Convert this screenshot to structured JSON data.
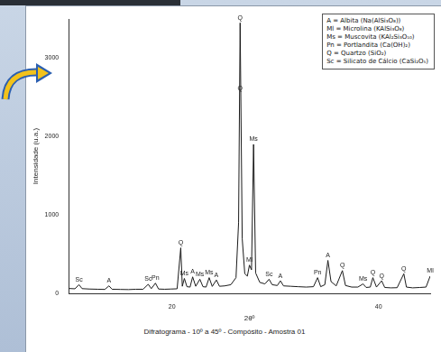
{
  "chart_data": {
    "type": "line",
    "caption": "Difratograma - 10º a 45º - Compósito - Amostra 01",
    "x_label": "2θº",
    "y_label": "Intensidade (u.a.)",
    "color": "#1a1a1a",
    "grid": false,
    "xlim": [
      10,
      45
    ],
    "xticks": [
      20,
      40
    ],
    "ylim": [
      0,
      3500
    ],
    "yticks": [
      0,
      1000,
      2000,
      3000
    ],
    "x": [
      10.0,
      10.6,
      11.0,
      11.3,
      12.0,
      12.8,
      13.5,
      13.9,
      14.2,
      15.0,
      15.8,
      16.5,
      17.2,
      17.7,
      18.0,
      18.4,
      18.7,
      19.3,
      19.9,
      20.5,
      20.85,
      21.0,
      21.2,
      21.45,
      21.75,
      22.0,
      22.3,
      22.7,
      23.0,
      23.3,
      23.6,
      23.9,
      24.3,
      24.6,
      25.1,
      25.7,
      26.2,
      26.45,
      26.6,
      26.8,
      27.05,
      27.3,
      27.5,
      27.7,
      27.9,
      28.1,
      28.5,
      29.0,
      29.4,
      29.7,
      30.2,
      30.5,
      30.8,
      31.5,
      32.2,
      33.0,
      33.7,
      34.1,
      34.4,
      34.8,
      35.1,
      35.4,
      35.9,
      36.5,
      36.8,
      37.4,
      38.0,
      38.5,
      38.8,
      39.2,
      39.45,
      39.8,
      40.3,
      40.6,
      41.2,
      41.8,
      42.45,
      42.7,
      43.3,
      44.0,
      44.6,
      45.0
    ],
    "values": [
      62,
      58,
      110,
      60,
      55,
      52,
      50,
      95,
      52,
      50,
      48,
      52,
      52,
      115,
      60,
      130,
      55,
      52,
      55,
      58,
      580,
      90,
      190,
      85,
      80,
      210,
      90,
      180,
      85,
      80,
      200,
      88,
      170,
      90,
      95,
      110,
      200,
      900,
      3450,
      700,
      250,
      220,
      360,
      300,
      1900,
      260,
      140,
      120,
      180,
      110,
      100,
      160,
      95,
      90,
      85,
      80,
      85,
      200,
      85,
      110,
      420,
      150,
      95,
      290,
      100,
      80,
      80,
      120,
      75,
      80,
      200,
      80,
      160,
      75,
      70,
      72,
      250,
      80,
      70,
      75,
      80,
      220
    ],
    "annotations": [
      {
        "text": "Sc",
        "x": 11.0,
        "y": 110
      },
      {
        "text": "A",
        "x": 13.9,
        "y": 95
      },
      {
        "text": "Sc",
        "x": 17.7,
        "y": 115
      },
      {
        "text": "Pn",
        "x": 18.4,
        "y": 130
      },
      {
        "text": "Q",
        "x": 20.85,
        "y": 580
      },
      {
        "text": "Ms",
        "x": 21.2,
        "y": 190
      },
      {
        "text": "A",
        "x": 22.0,
        "y": 210
      },
      {
        "text": "Ms",
        "x": 22.7,
        "y": 180
      },
      {
        "text": "Ms",
        "x": 23.6,
        "y": 200
      },
      {
        "text": "A",
        "x": 24.3,
        "y": 170
      },
      {
        "text": "Q",
        "x": 26.6,
        "y": 3450
      },
      {
        "text": "Q",
        "x": 26.6,
        "y": 2550
      },
      {
        "text": "Ml",
        "x": 27.5,
        "y": 360
      },
      {
        "text": "Ms",
        "x": 27.9,
        "y": 1900
      },
      {
        "text": "Sc",
        "x": 29.4,
        "y": 180
      },
      {
        "text": "A",
        "x": 30.5,
        "y": 160
      },
      {
        "text": "Pn",
        "x": 34.1,
        "y": 200
      },
      {
        "text": "A",
        "x": 35.1,
        "y": 420
      },
      {
        "text": "Q",
        "x": 36.5,
        "y": 290
      },
      {
        "text": "Ms",
        "x": 38.5,
        "y": 120
      },
      {
        "text": "Q",
        "x": 39.45,
        "y": 200
      },
      {
        "text": "Q",
        "x": 40.3,
        "y": 160
      },
      {
        "text": "Q",
        "x": 42.45,
        "y": 250
      },
      {
        "text": "Ml",
        "x": 45.0,
        "y": 220
      }
    ],
    "phase_key": [
      "A = Albita (Na(AlSi₃O₈))",
      "Ml = Microlina (KAlSi₃O₈)",
      "Ms = Muscovita (KAl₂Si₃O₁₀)",
      "Pn = Portlandita (Ca(OH)₂)",
      "Q = Quartzo (SiO₂)",
      "Sc = Silicato de Cálcio (CaSi₂O₅)"
    ]
  }
}
